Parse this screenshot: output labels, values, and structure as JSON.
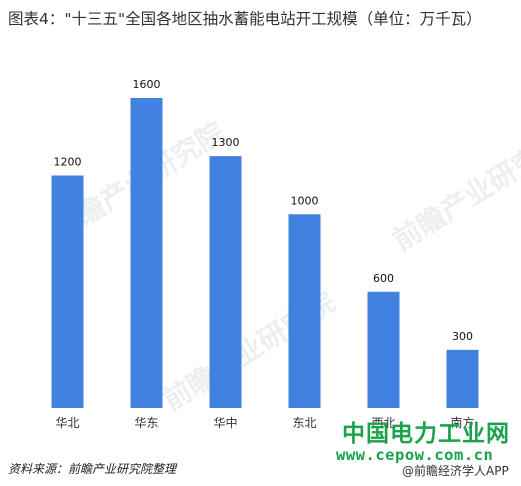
{
  "header": {
    "title": "图表4：\"十三五\"全国各地区抽水蓄能电站开工规模（单位：万千瓦）"
  },
  "chart_data": {
    "type": "bar",
    "categories": [
      "华北",
      "华东",
      "华中",
      "东北",
      "西北",
      "南方"
    ],
    "values": [
      1200,
      1600,
      1300,
      1000,
      600,
      300
    ],
    "data_labels": [
      "1200",
      "1600",
      "1300",
      "1000",
      "600",
      "300"
    ],
    "ylim": [
      0,
      1600
    ],
    "bar_color": "#3f82e0",
    "grid": false,
    "legend": "none"
  },
  "watermarks": {
    "text": "前瞻产业研究院"
  },
  "footer": {
    "source": "资料来源：前瞻产业研究院整理",
    "brand_cn": "中国电力工业网",
    "brand_url": "www.cepow.com.cn",
    "brand_app": "@前瞻经济学人APP"
  },
  "colors": {
    "bar": "#3f82e0",
    "brand_green": "#1aa34a"
  }
}
